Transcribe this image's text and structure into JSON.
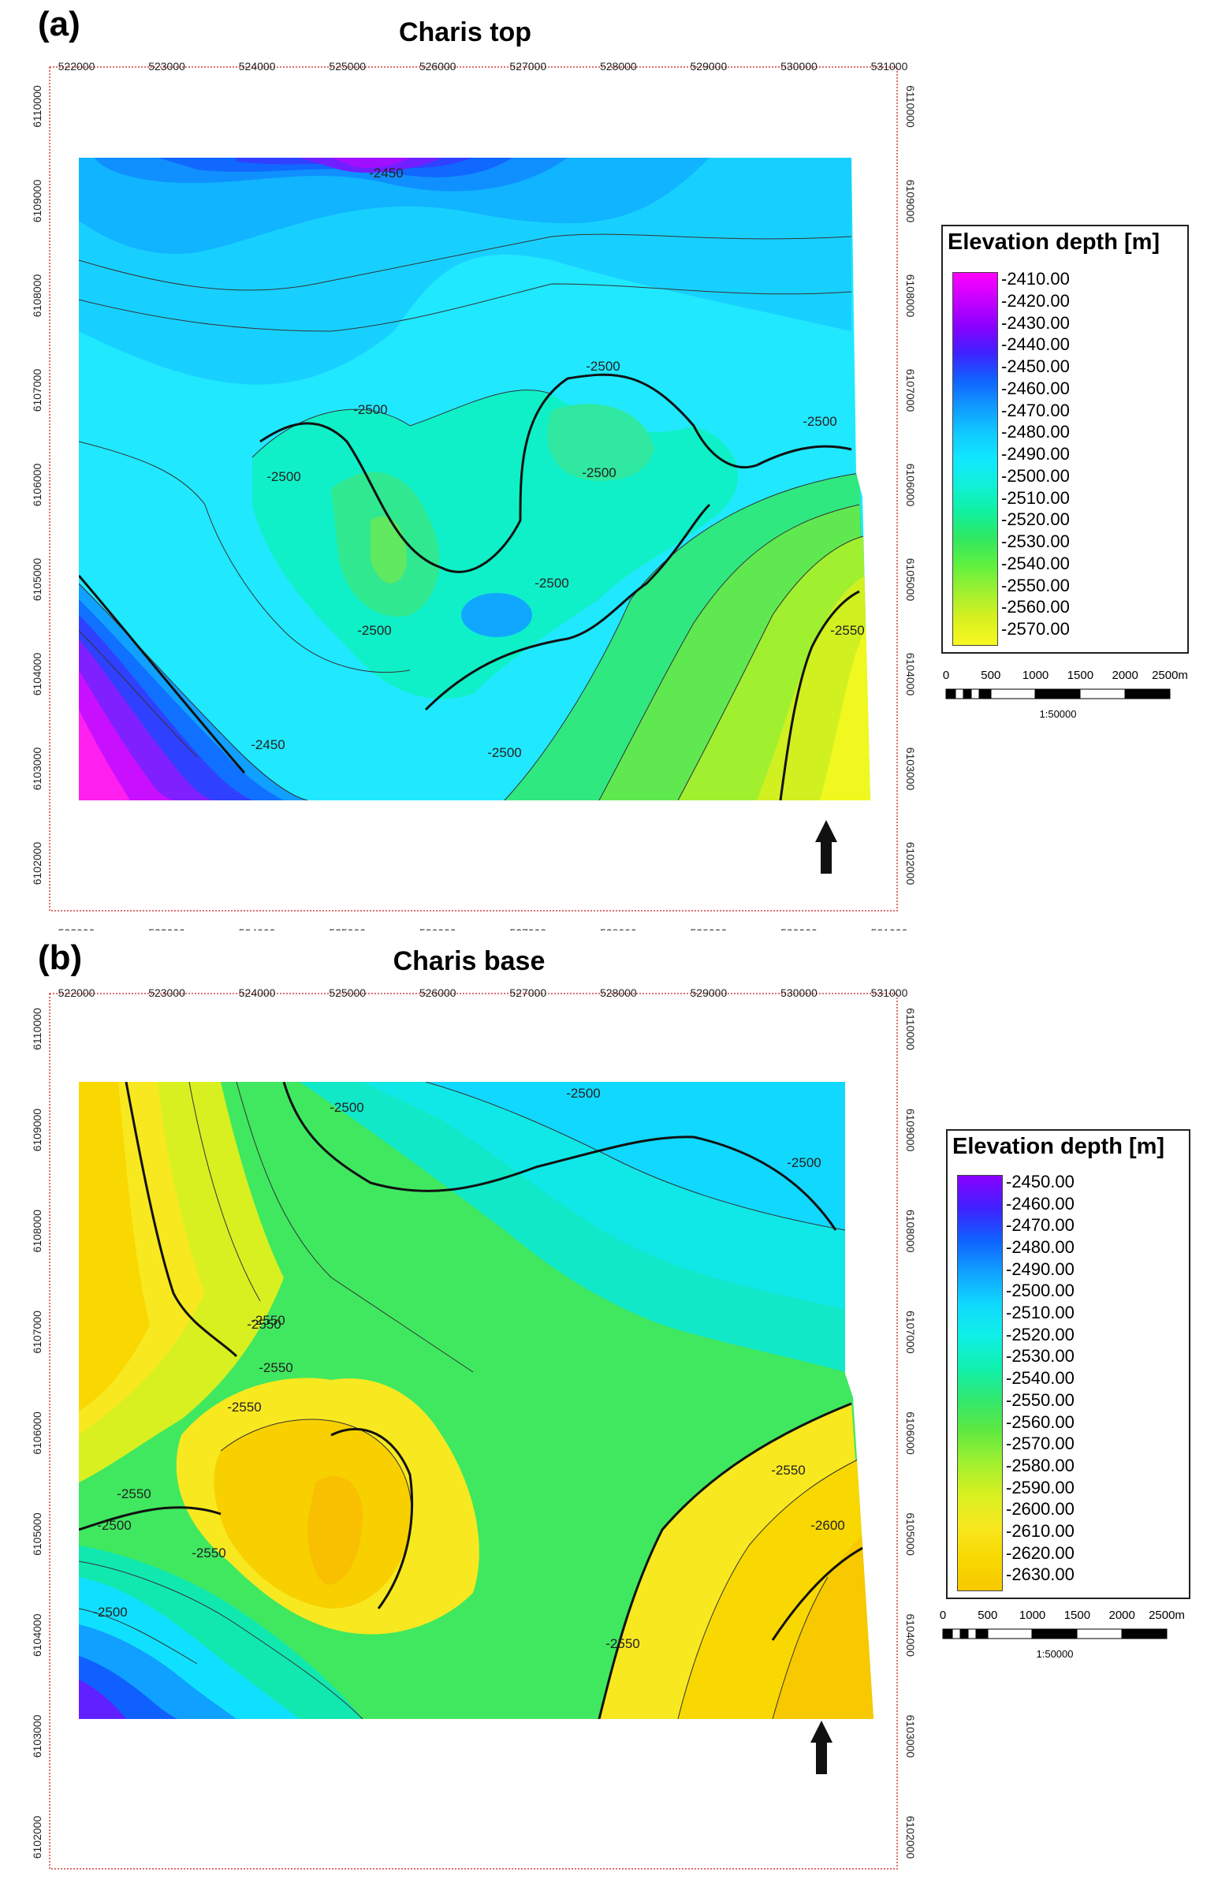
{
  "panels": [
    {
      "letter": "(a)",
      "title": "Charis top",
      "x_ticks": [
        "522000",
        "523000",
        "524000",
        "525000",
        "526000",
        "527000",
        "528000",
        "529000",
        "530000",
        "531000"
      ],
      "y_ticks": [
        "6110000",
        "6109000",
        "6108000",
        "6107000",
        "6106000",
        "6105000",
        "6104000",
        "6103000",
        "6102000"
      ],
      "legend": {
        "title": "Elevation depth [m]",
        "entries": [
          "-2410.00",
          "-2420.00",
          "-2430.00",
          "-2440.00",
          "-2450.00",
          "-2460.00",
          "-2470.00",
          "-2480.00",
          "-2490.00",
          "-2500.00",
          "-2510.00",
          "-2520.00",
          "-2530.00",
          "-2540.00",
          "-2550.00",
          "-2560.00",
          "-2570.00"
        ],
        "colors": [
          "#ff00ff",
          "#c800ff",
          "#8a00ff",
          "#4020ff",
          "#1060ff",
          "#1098ff",
          "#10c8ff",
          "#10e8ff",
          "#10f0d8",
          "#10f0a0",
          "#30e860",
          "#60f040",
          "#a0f030",
          "#d8f020",
          "#f8f820"
        ]
      },
      "contour_labels": [
        "-2450",
        "-2500",
        "-2500",
        "-2500",
        "-2500",
        "-2500",
        "-2500",
        "-2500",
        "-2550",
        "-2500",
        "-2450"
      ]
    },
    {
      "letter": "(b)",
      "title": "Charis base",
      "x_ticks": [
        "522000",
        "523000",
        "524000",
        "525000",
        "526000",
        "527000",
        "528000",
        "529000",
        "530000",
        "531000"
      ],
      "y_ticks": [
        "6110000",
        "6109000",
        "6108000",
        "6107000",
        "6106000",
        "6105000",
        "6104000",
        "6103000",
        "6102000"
      ],
      "legend": {
        "title": "Elevation depth [m]",
        "entries": [
          "-2450.00",
          "-2460.00",
          "-2470.00",
          "-2480.00",
          "-2490.00",
          "-2500.00",
          "-2510.00",
          "-2520.00",
          "-2530.00",
          "-2540.00",
          "-2550.00",
          "-2560.00",
          "-2570.00",
          "-2580.00",
          "-2590.00",
          "-2600.00",
          "-2610.00",
          "-2620.00",
          "-2630.00"
        ],
        "colors": [
          "#8a00ff",
          "#4020ff",
          "#1060ff",
          "#10a0ff",
          "#10d8ff",
          "#10f0e8",
          "#10f0b0",
          "#30e870",
          "#60e840",
          "#a0f030",
          "#d8f020",
          "#f8e820",
          "#f8d800",
          "#f8c800"
        ]
      },
      "contour_labels": [
        "-2500",
        "-2500",
        "-2500",
        "-2550",
        "-2550",
        "-2550",
        "-2550",
        "-2550",
        "-2500",
        "-2500",
        "-2550",
        "-2600",
        "-2550",
        "-2550"
      ]
    }
  ],
  "scalebar": {
    "ticks": [
      "0",
      "500",
      "1000",
      "1500",
      "2000",
      "2500m"
    ],
    "ratio": "1:50000"
  },
  "north_arrow": "north-arrow"
}
